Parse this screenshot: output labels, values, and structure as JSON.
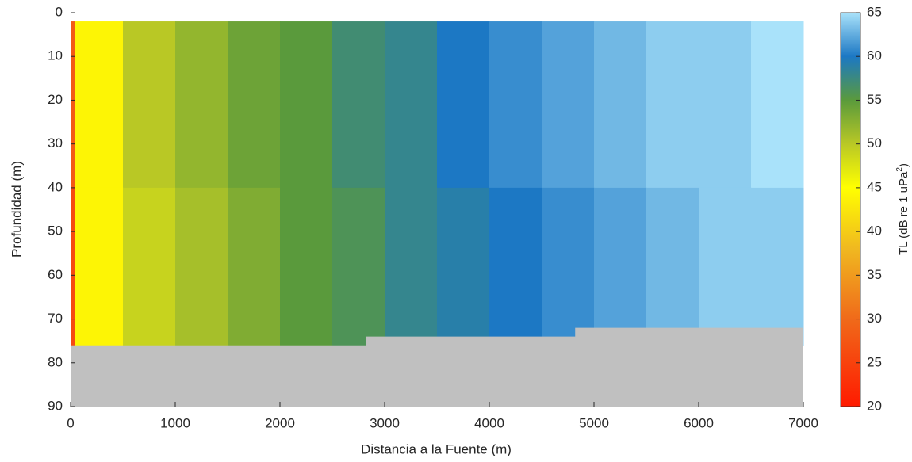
{
  "chart_data": {
    "type": "heatmap",
    "xlabel": "Distancia a la Fuente (m)",
    "ylabel": "Profundidad (m)",
    "xlim": [
      0,
      7000
    ],
    "ylim": [
      0,
      90
    ],
    "y_reversed": true,
    "xticks": [
      0,
      1000,
      2000,
      3000,
      4000,
      5000,
      6000,
      7000
    ],
    "yticks": [
      0,
      10,
      20,
      30,
      40,
      50,
      60,
      70,
      80,
      90
    ],
    "x_edges": [
      0,
      40,
      500,
      1000,
      1500,
      2000,
      2500,
      3000,
      3500,
      4000,
      4500,
      5000,
      5500,
      6000,
      6500,
      7000
    ],
    "y_edges": [
      2,
      40,
      76
    ],
    "values": [
      [
        28,
        44,
        50,
        52,
        54,
        55,
        57,
        58,
        60,
        61,
        62,
        63,
        64,
        64,
        65
      ],
      [
        26,
        44,
        49,
        51,
        53,
        55,
        56,
        58,
        59,
        60,
        61,
        62,
        63,
        64,
        64
      ]
    ],
    "seafloor": {
      "color": "#c0c0c0",
      "x": [
        0,
        2820,
        2820,
        4820,
        4820,
        7000
      ],
      "depth": [
        76,
        76,
        74,
        74,
        72,
        72
      ]
    },
    "clim": [
      20,
      65
    ],
    "colorbar_ticks": [
      20,
      25,
      30,
      35,
      40,
      45,
      50,
      55,
      60,
      65
    ],
    "colorbar_label": "TL (dB re 1 uPa",
    "colorbar_label_sup": "2",
    "colorbar_label_end": ")",
    "colormap": [
      {
        "value": 20,
        "color": "#ff1a00"
      },
      {
        "value": 30,
        "color": "#f06a1a"
      },
      {
        "value": 38,
        "color": "#f0b820"
      },
      {
        "value": 45,
        "color": "#ffff00"
      },
      {
        "value": 50,
        "color": "#b9c825"
      },
      {
        "value": 55,
        "color": "#5a9a3c"
      },
      {
        "value": 60,
        "color": "#1c78c4"
      },
      {
        "value": 65,
        "color": "#a9e2fa"
      }
    ]
  }
}
